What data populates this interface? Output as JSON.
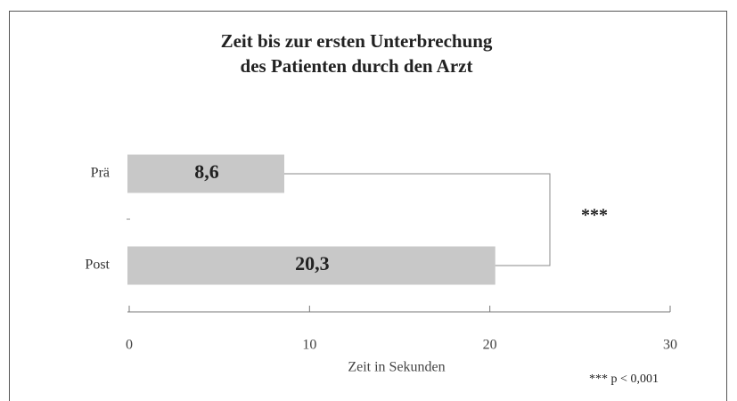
{
  "chart_data": {
    "type": "bar",
    "orientation": "horizontal",
    "title_lines": [
      "Zeit bis zur ersten Unterbrechung",
      "des Patienten durch den Arzt"
    ],
    "categories": [
      "Prä",
      "Post"
    ],
    "values": [
      8.6,
      20.3
    ],
    "value_labels": [
      "8,6",
      "20,3"
    ],
    "color": "#c8c8c8",
    "xlim": [
      0,
      30
    ],
    "xticks": [
      0,
      10,
      20,
      30
    ],
    "xlabel": "Zeit in Sekunden",
    "significance": "***",
    "note": "*** p < 0,001"
  }
}
